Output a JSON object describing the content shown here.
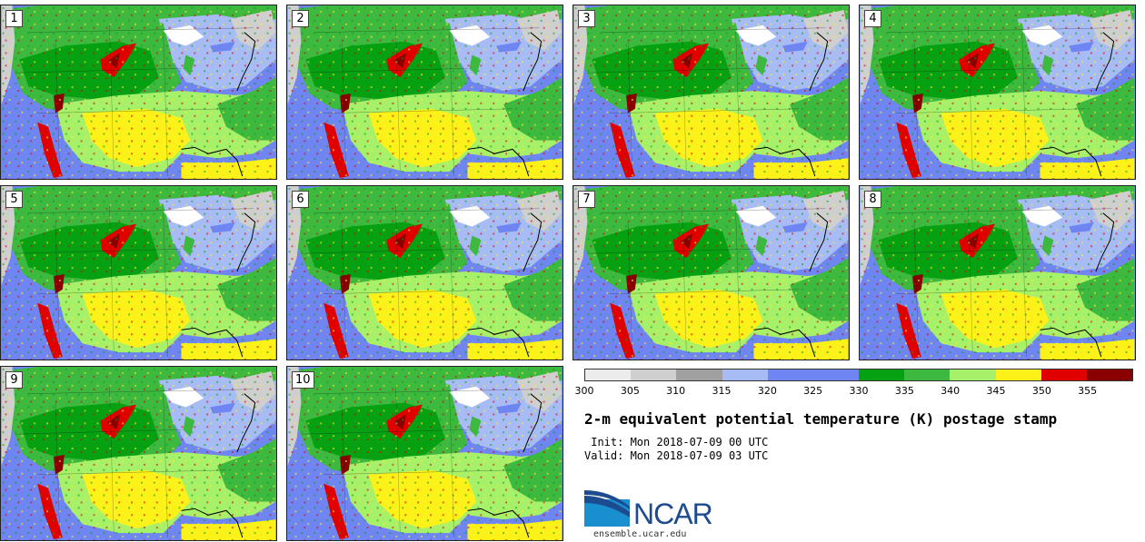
{
  "title": "2-m equivalent potential temperature (K) postage stamp",
  "init_text": " Init: Mon 2018-07-09 00 UTC",
  "valid_text": "Valid: Mon 2018-07-09 03 UTC",
  "logo_text": "NCAR",
  "site": "ensemble.ucar.edu",
  "panels": [
    "1",
    "2",
    "3",
    "4",
    "5",
    "6",
    "7",
    "8",
    "9",
    "10"
  ],
  "colorbar": {
    "ticks": [
      "300",
      "305",
      "310",
      "315",
      "320",
      "325",
      "330",
      "335",
      "340",
      "345",
      "350",
      "355"
    ],
    "colors": [
      "#ececec",
      "#cfcfcf",
      "#a0a0a0",
      "#a7bcf5",
      "#6f86f2",
      "#6f86f2",
      "#06a013",
      "#3db93f",
      "#a6f06a",
      "#fcf21a",
      "#e00000",
      "#8a0000"
    ]
  }
}
